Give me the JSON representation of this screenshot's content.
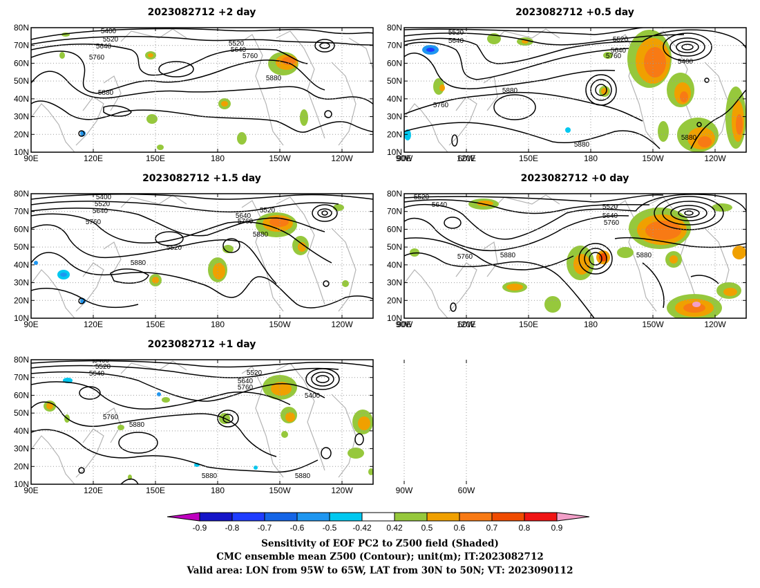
{
  "panels": [
    {
      "key": "p2",
      "title": "2023082712  +2  day",
      "labels": [
        "5400",
        "5520",
        "5640",
        "5760",
        "5520",
        "5640",
        "5760",
        "5880",
        "5880"
      ]
    },
    {
      "key": "p05",
      "title": "2023082712  +0.5  day",
      "labels": [
        "5520",
        "5640",
        "5520",
        "5640",
        "5760",
        "5400",
        "5880",
        "5760",
        "5880",
        "5880"
      ]
    },
    {
      "key": "p15",
      "title": "2023082712  +1.5  day",
      "labels": [
        "5400",
        "5520",
        "5640",
        "5760",
        "5520",
        "5640",
        "5760",
        "5880",
        "5520",
        "5880"
      ]
    },
    {
      "key": "p0",
      "title": "2023082712  +0  day",
      "labels": [
        "5520",
        "5640",
        "5520",
        "5640",
        "5760",
        "5760",
        "5880",
        "5880"
      ]
    },
    {
      "key": "p1",
      "title": "2023082712  +1  day",
      "labels": [
        "5400",
        "5520",
        "5640",
        "5520",
        "5640",
        "5760",
        "5400",
        "5760",
        "5880",
        "5880",
        "5880"
      ]
    }
  ],
  "lon_ticks": [
    "90E",
    "120E",
    "150E",
    "180",
    "150W",
    "120W",
    "90W",
    "60W"
  ],
  "lat_ticks": [
    "80N",
    "70N",
    "60N",
    "50N",
    "40N",
    "30N",
    "20N",
    "10N"
  ],
  "colorbar": {
    "tick_labels": [
      "-0.9",
      "-0.8",
      "-0.7",
      "-0.6",
      "-0.5",
      "-0.42",
      "0.42",
      "0.5",
      "0.6",
      "0.7",
      "0.8",
      "0.9"
    ],
    "colors": [
      "#bf00bf",
      "#1414c8",
      "#1e3cff",
      "#1464e6",
      "#1e96f0",
      "#00c8f0",
      "#ffffff",
      "#96c83c",
      "#f0a000",
      "#f87a14",
      "#f04b00",
      "#f01414",
      "#f29fc8"
    ]
  },
  "caption": {
    "line1": "Sensitivity of EOF PC2 to Z500 field (Shaded)",
    "line2": "CMC ensemble mean Z500 (Contour); unit(m); IT:2023082712",
    "line3": "Valid area: LON from 95W to 65W, LAT from 30N to 50N; VT: 2023090112"
  }
}
